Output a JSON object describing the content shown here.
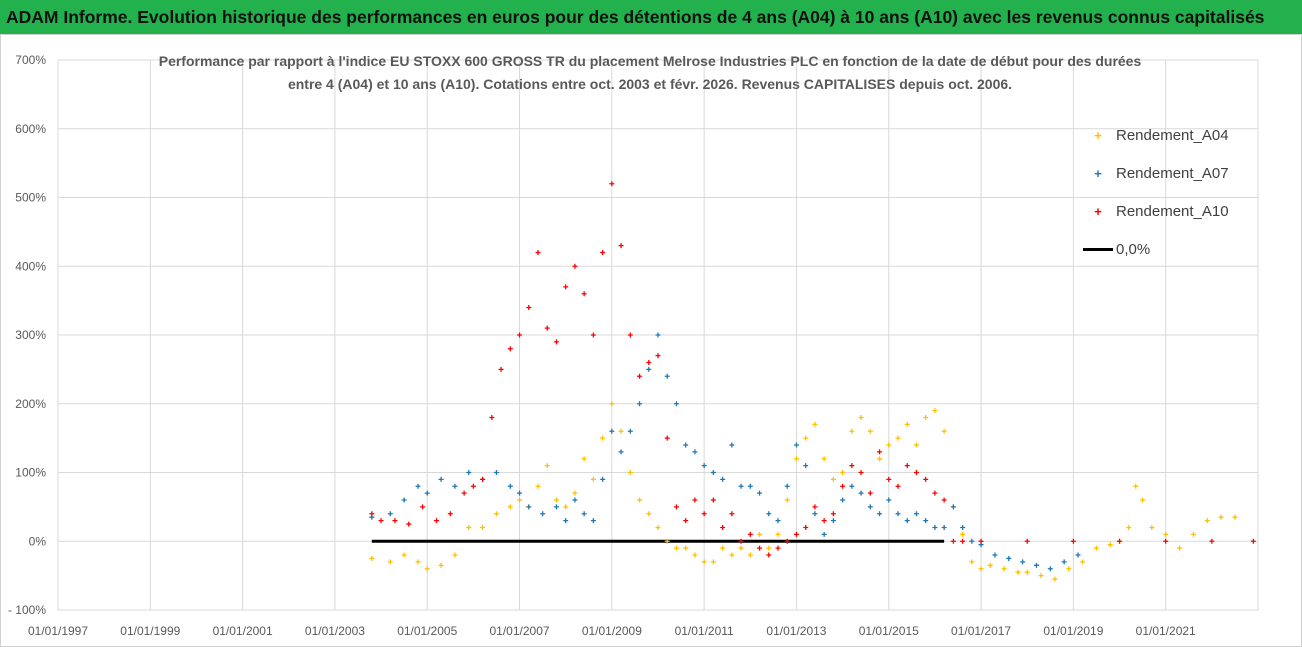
{
  "banner": {
    "title": "ADAM Informe. Evolution historique des performances en euros pour des détentions de 4 ans (A04) à 10 ans (A10) avec les revenus connus capitalisés"
  },
  "chart_data": {
    "type": "scatter",
    "title_line1": "Performance par rapport à l'indice EU STOXX 600 GROSS TR  du placement Melrose Industries PLC en fonction de la date de début pour des durées",
    "title_line2": "entre 4 (A04) et 10 ans (A10).  Cotations entre oct. 2003 et févr. 2026. Revenus CAPITALISES depuis oct. 2006.",
    "xlabel": "",
    "ylabel": "",
    "ylim": [
      -100,
      700
    ],
    "y_ticks": [
      {
        "value": -100,
        "label": "- 100%"
      },
      {
        "value": 0,
        "label": "0%"
      },
      {
        "value": 100,
        "label": "100%"
      },
      {
        "value": 200,
        "label": "200%"
      },
      {
        "value": 300,
        "label": "300%"
      },
      {
        "value": 400,
        "label": "400%"
      },
      {
        "value": 500,
        "label": "500%"
      },
      {
        "value": 600,
        "label": "600%"
      },
      {
        "value": 700,
        "label": "700%"
      }
    ],
    "xlim": [
      1997.0,
      2023.0
    ],
    "x_ticks": [
      {
        "value": 1997,
        "label": "01/01/1997"
      },
      {
        "value": 1999,
        "label": "01/01/1999"
      },
      {
        "value": 2001,
        "label": "01/01/2001"
      },
      {
        "value": 2003,
        "label": "01/01/2003"
      },
      {
        "value": 2005,
        "label": "01/01/2005"
      },
      {
        "value": 2007,
        "label": "01/01/2007"
      },
      {
        "value": 2009,
        "label": "01/01/2009"
      },
      {
        "value": 2011,
        "label": "01/01/2011"
      },
      {
        "value": 2013,
        "label": "01/01/2013"
      },
      {
        "value": 2015,
        "label": "01/01/2015"
      },
      {
        "value": 2017,
        "label": "01/01/2017"
      },
      {
        "value": 2019,
        "label": "01/01/2019"
      },
      {
        "value": 2021,
        "label": "01/01/2021"
      }
    ],
    "legend_position": "top-right",
    "series": [
      {
        "name": "Rendement_A04",
        "color": "#ffc000",
        "marker": "+",
        "points": [
          [
            2003.8,
            -25
          ],
          [
            2004.2,
            -30
          ],
          [
            2004.5,
            -20
          ],
          [
            2004.8,
            -30
          ],
          [
            2005.0,
            -40
          ],
          [
            2005.3,
            -35
          ],
          [
            2005.6,
            -20
          ],
          [
            2005.9,
            20
          ],
          [
            2006.2,
            20
          ],
          [
            2006.5,
            40
          ],
          [
            2006.8,
            50
          ],
          [
            2007.0,
            60
          ],
          [
            2007.2,
            50
          ],
          [
            2007.4,
            80
          ],
          [
            2007.6,
            110
          ],
          [
            2007.8,
            60
          ],
          [
            2008.0,
            50
          ],
          [
            2008.2,
            70
          ],
          [
            2008.4,
            120
          ],
          [
            2008.6,
            90
          ],
          [
            2008.8,
            150
          ],
          [
            2009.0,
            200
          ],
          [
            2009.2,
            160
          ],
          [
            2009.4,
            100
          ],
          [
            2009.6,
            60
          ],
          [
            2009.8,
            40
          ],
          [
            2010.0,
            20
          ],
          [
            2010.2,
            0
          ],
          [
            2010.4,
            -10
          ],
          [
            2010.6,
            -10
          ],
          [
            2010.8,
            -20
          ],
          [
            2011.0,
            -30
          ],
          [
            2011.2,
            -30
          ],
          [
            2011.4,
            -10
          ],
          [
            2011.6,
            -20
          ],
          [
            2011.8,
            -10
          ],
          [
            2012.0,
            -20
          ],
          [
            2012.2,
            10
          ],
          [
            2012.4,
            -10
          ],
          [
            2012.6,
            10
          ],
          [
            2012.8,
            60
          ],
          [
            2013.0,
            120
          ],
          [
            2013.2,
            150
          ],
          [
            2013.4,
            170
          ],
          [
            2013.6,
            120
          ],
          [
            2013.8,
            90
          ],
          [
            2014.0,
            100
          ],
          [
            2014.2,
            160
          ],
          [
            2014.4,
            180
          ],
          [
            2014.6,
            160
          ],
          [
            2014.8,
            120
          ],
          [
            2015.0,
            140
          ],
          [
            2015.2,
            150
          ],
          [
            2015.4,
            170
          ],
          [
            2015.6,
            140
          ],
          [
            2015.8,
            180
          ],
          [
            2016.0,
            190
          ],
          [
            2016.2,
            160
          ],
          [
            2016.4,
            50
          ],
          [
            2016.6,
            10
          ],
          [
            2016.8,
            -30
          ],
          [
            2017.0,
            -40
          ],
          [
            2017.2,
            -35
          ],
          [
            2017.5,
            -40
          ],
          [
            2017.8,
            -45
          ],
          [
            2018.0,
            -45
          ],
          [
            2018.3,
            -50
          ],
          [
            2018.6,
            -55
          ],
          [
            2018.9,
            -40
          ],
          [
            2019.2,
            -30
          ],
          [
            2019.5,
            -10
          ],
          [
            2019.8,
            -5
          ],
          [
            2020.0,
            0
          ],
          [
            2020.2,
            20
          ],
          [
            2020.35,
            80
          ],
          [
            2020.5,
            60
          ],
          [
            2020.7,
            20
          ],
          [
            2021.0,
            10
          ],
          [
            2021.3,
            -10
          ],
          [
            2021.6,
            10
          ],
          [
            2021.9,
            30
          ],
          [
            2022.2,
            35
          ],
          [
            2022.5,
            35
          ]
        ]
      },
      {
        "name": "Rendement_A07",
        "color": "#1f77b4",
        "marker": "+",
        "points": [
          [
            2003.8,
            35
          ],
          [
            2004.2,
            40
          ],
          [
            2004.5,
            60
          ],
          [
            2004.8,
            80
          ],
          [
            2005.0,
            70
          ],
          [
            2005.3,
            90
          ],
          [
            2005.6,
            80
          ],
          [
            2005.9,
            100
          ],
          [
            2006.2,
            90
          ],
          [
            2006.5,
            100
          ],
          [
            2006.8,
            80
          ],
          [
            2007.0,
            70
          ],
          [
            2007.2,
            50
          ],
          [
            2007.5,
            40
          ],
          [
            2007.8,
            50
          ],
          [
            2008.0,
            30
          ],
          [
            2008.2,
            60
          ],
          [
            2008.4,
            40
          ],
          [
            2008.6,
            30
          ],
          [
            2008.8,
            90
          ],
          [
            2009.0,
            160
          ],
          [
            2009.2,
            130
          ],
          [
            2009.4,
            160
          ],
          [
            2009.6,
            200
          ],
          [
            2009.8,
            250
          ],
          [
            2010.0,
            300
          ],
          [
            2010.2,
            240
          ],
          [
            2010.4,
            200
          ],
          [
            2010.6,
            140
          ],
          [
            2010.8,
            130
          ],
          [
            2011.0,
            110
          ],
          [
            2011.2,
            100
          ],
          [
            2011.4,
            90
          ],
          [
            2011.6,
            140
          ],
          [
            2011.8,
            80
          ],
          [
            2012.0,
            80
          ],
          [
            2012.2,
            70
          ],
          [
            2012.4,
            40
          ],
          [
            2012.6,
            30
          ],
          [
            2012.8,
            80
          ],
          [
            2013.0,
            140
          ],
          [
            2013.2,
            110
          ],
          [
            2013.4,
            40
          ],
          [
            2013.6,
            10
          ],
          [
            2013.8,
            30
          ],
          [
            2014.0,
            60
          ],
          [
            2014.2,
            80
          ],
          [
            2014.4,
            70
          ],
          [
            2014.6,
            50
          ],
          [
            2014.8,
            40
          ],
          [
            2015.0,
            60
          ],
          [
            2015.2,
            40
          ],
          [
            2015.4,
            30
          ],
          [
            2015.6,
            40
          ],
          [
            2015.8,
            30
          ],
          [
            2016.0,
            20
          ],
          [
            2016.2,
            20
          ],
          [
            2016.4,
            50
          ],
          [
            2016.6,
            20
          ],
          [
            2016.8,
            0
          ],
          [
            2017.0,
            -5
          ],
          [
            2017.3,
            -20
          ],
          [
            2017.6,
            -25
          ],
          [
            2017.9,
            -30
          ],
          [
            2018.2,
            -35
          ],
          [
            2018.5,
            -40
          ],
          [
            2018.8,
            -30
          ],
          [
            2019.1,
            -20
          ]
        ]
      },
      {
        "name": "Rendement_A10",
        "color": "#ff0000",
        "marker": "+",
        "points": [
          [
            2003.8,
            40
          ],
          [
            2004.0,
            30
          ],
          [
            2004.3,
            30
          ],
          [
            2004.6,
            25
          ],
          [
            2004.9,
            50
          ],
          [
            2005.2,
            30
          ],
          [
            2005.5,
            40
          ],
          [
            2005.8,
            70
          ],
          [
            2006.0,
            80
          ],
          [
            2006.2,
            90
          ],
          [
            2006.4,
            180
          ],
          [
            2006.6,
            250
          ],
          [
            2006.8,
            280
          ],
          [
            2007.0,
            300
          ],
          [
            2007.2,
            340
          ],
          [
            2007.4,
            420
          ],
          [
            2007.6,
            310
          ],
          [
            2007.8,
            290
          ],
          [
            2008.0,
            370
          ],
          [
            2008.2,
            400
          ],
          [
            2008.4,
            360
          ],
          [
            2008.6,
            300
          ],
          [
            2008.8,
            420
          ],
          [
            2009.0,
            520
          ],
          [
            2009.2,
            430
          ],
          [
            2009.4,
            300
          ],
          [
            2009.6,
            240
          ],
          [
            2009.8,
            260
          ],
          [
            2010.0,
            270
          ],
          [
            2010.2,
            150
          ],
          [
            2010.4,
            50
          ],
          [
            2010.6,
            30
          ],
          [
            2010.8,
            60
          ],
          [
            2011.0,
            40
          ],
          [
            2011.2,
            60
          ],
          [
            2011.4,
            20
          ],
          [
            2011.6,
            40
          ],
          [
            2011.8,
            0
          ],
          [
            2012.0,
            10
          ],
          [
            2012.2,
            -10
          ],
          [
            2012.4,
            -20
          ],
          [
            2012.6,
            -10
          ],
          [
            2012.8,
            0
          ],
          [
            2013.0,
            10
          ],
          [
            2013.2,
            20
          ],
          [
            2013.4,
            50
          ],
          [
            2013.6,
            30
          ],
          [
            2013.8,
            40
          ],
          [
            2014.0,
            80
          ],
          [
            2014.2,
            110
          ],
          [
            2014.4,
            100
          ],
          [
            2014.6,
            70
          ],
          [
            2014.8,
            130
          ],
          [
            2015.0,
            90
          ],
          [
            2015.2,
            80
          ],
          [
            2015.4,
            110
          ],
          [
            2015.6,
            100
          ],
          [
            2015.8,
            90
          ],
          [
            2016.0,
            70
          ],
          [
            2016.2,
            60
          ],
          [
            2016.4,
            0
          ],
          [
            2016.6,
            0
          ],
          [
            2017.0,
            0
          ],
          [
            2018.0,
            0
          ],
          [
            2019.0,
            0
          ],
          [
            2020.0,
            0
          ],
          [
            2021.0,
            0
          ],
          [
            2022.0,
            0
          ],
          [
            2022.9,
            0
          ]
        ]
      },
      {
        "name": "0,0%",
        "color": "#000000",
        "marker": "line",
        "points": [
          [
            2003.8,
            0
          ],
          [
            2016.2,
            0
          ]
        ]
      }
    ]
  }
}
